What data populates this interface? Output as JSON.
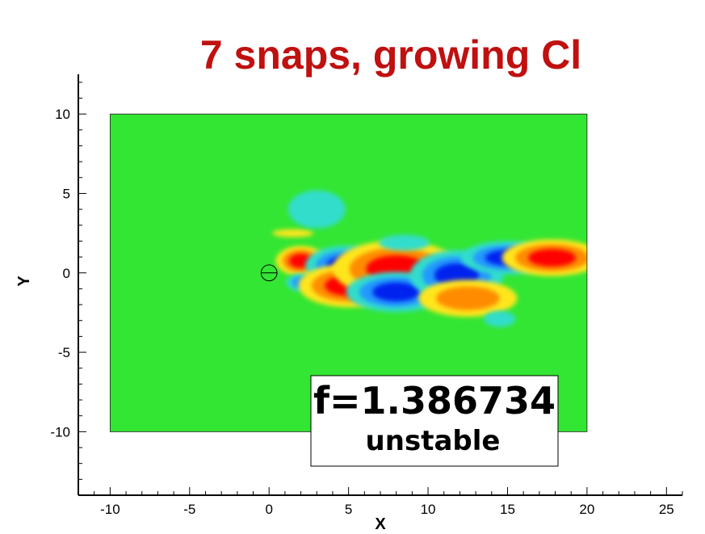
{
  "title": "7 snaps, growing Cl",
  "annotation": {
    "frequency": "f=1.386734",
    "status": "unstable"
  },
  "colors": {
    "title": "#c01010",
    "background_field": "#33e633",
    "positive_strong": "#ff0000",
    "positive_mid": "#ff8c00",
    "positive_weak": "#ffe61a",
    "negative_strong": "#0022ee",
    "negative_mid": "#2299ff",
    "negative_weak": "#33ddcc"
  },
  "chart_data": {
    "type": "heatmap",
    "title": "7 snaps, growing Cl",
    "xlabel": "X",
    "ylabel": "Y",
    "xlim": [
      -12,
      26
    ],
    "ylim": [
      -14,
      12.5
    ],
    "x_ticks": [
      -10,
      -5,
      0,
      5,
      10,
      15,
      20,
      25
    ],
    "y_ticks": [
      -10,
      -5,
      0,
      5,
      10
    ],
    "domain": {
      "x": [
        -10,
        20
      ],
      "y": [
        -10,
        10
      ]
    },
    "cylinder": {
      "center": [
        0,
        0
      ],
      "radius": 0.5
    },
    "grid": false,
    "blobs": [
      {
        "x": 2.0,
        "y": 0.75,
        "rx": 0.75,
        "ry": 0.45,
        "level": 3
      },
      {
        "x": 2.0,
        "y": -0.6,
        "rx": 0.6,
        "ry": 0.35,
        "level": -2
      },
      {
        "x": 4.8,
        "y": 0.45,
        "rx": 1.2,
        "ry": 0.6,
        "level": -3
      },
      {
        "x": 5.0,
        "y": -0.8,
        "rx": 1.5,
        "ry": 0.65,
        "level": 3
      },
      {
        "x": 8.0,
        "y": 0.25,
        "rx": 1.9,
        "ry": 0.85,
        "level": 3
      },
      {
        "x": 8.0,
        "y": -1.2,
        "rx": 1.5,
        "ry": 0.6,
        "level": -3
      },
      {
        "x": 11.8,
        "y": -0.15,
        "rx": 1.4,
        "ry": 0.75,
        "level": -3
      },
      {
        "x": 12.5,
        "y": -1.6,
        "rx": 2.0,
        "ry": 0.75,
        "level": 2
      },
      {
        "x": 15.0,
        "y": 0.95,
        "rx": 1.4,
        "ry": 0.5,
        "level": -3
      },
      {
        "x": 17.8,
        "y": 0.95,
        "rx": 1.5,
        "ry": 0.55,
        "level": 3
      },
      {
        "x": 8.5,
        "y": 1.9,
        "rx": 1.6,
        "ry": 0.5,
        "level": -1
      },
      {
        "x": 14.5,
        "y": -2.9,
        "rx": 1.0,
        "ry": 0.5,
        "level": -1
      },
      {
        "x": 1.5,
        "y": 2.5,
        "rx": 1.3,
        "ry": 0.25,
        "level": 1
      },
      {
        "x": 3.0,
        "y": 4.0,
        "rx": 1.8,
        "ry": 1.2,
        "level": -1
      }
    ]
  }
}
